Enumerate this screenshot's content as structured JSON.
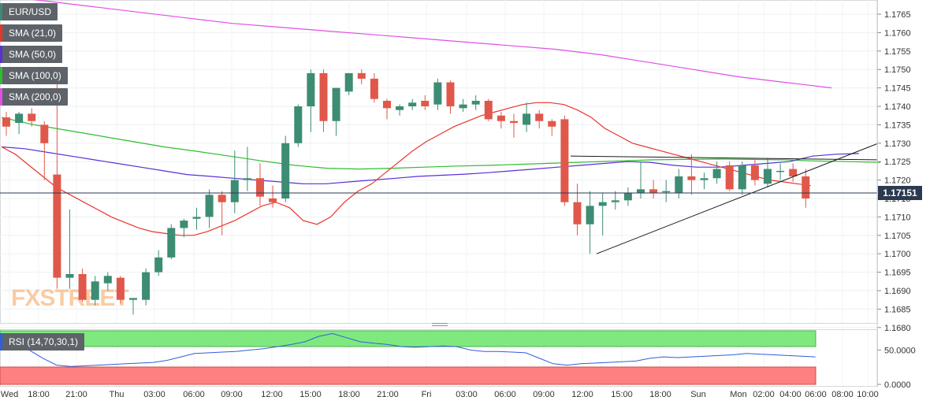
{
  "chart_data": {
    "type": "candlestick",
    "symbol": "EUR/USD",
    "last_price": "1.17151",
    "watermark": "FXSTREET",
    "colors": {
      "up": "#3d8c74",
      "down": "#e0584b",
      "sma21": "#e8352b",
      "sma50": "#5b2fd6",
      "sma100": "#2fbd2f",
      "sma200": "#e04fe6",
      "rsi": "#2f5fd9",
      "rsi_over": "#7fe97f",
      "rsi_under": "#ff8080",
      "last_line": "#2b3a4f",
      "trendline": "#1a1a1a"
    },
    "legend": [
      {
        "label": "EUR/USD",
        "color": "#3d8c74"
      },
      {
        "label": "SMA (21,0)",
        "color": "#e8352b"
      },
      {
        "label": "SMA (50,0)",
        "color": "#5b2fd6"
      },
      {
        "label": "SMA (100,0)",
        "color": "#2fbd2f"
      },
      {
        "label": "SMA (200,0)",
        "color": "#e04fe6"
      }
    ],
    "rsi_label": "RSI (14,70,30,1)",
    "y_ticks": [
      "1.1765",
      "1.1760",
      "1.1755",
      "1.1750",
      "1.1745",
      "1.1740",
      "1.1735",
      "1.1730",
      "1.1725",
      "1.1720",
      "1.1715",
      "1.1710",
      "1.1705",
      "1.1700",
      "1.1695",
      "1.1690",
      "1.1685",
      "1.1680"
    ],
    "ylim": [
      1.1678,
      1.1768
    ],
    "rsi_ticks": [
      "50.0000",
      "0.0000"
    ],
    "rsi_lim": [
      0,
      78
    ],
    "x_ticks": [
      "Wed",
      "18:00",
      "21:00",
      "Thu",
      "03:00",
      "06:00",
      "09:00",
      "12:00",
      "15:00",
      "18:00",
      "21:00",
      "Fri",
      "03:00",
      "06:00",
      "09:00",
      "12:00",
      "15:00",
      "18:00",
      "Sun",
      "Mon",
      "02:00",
      "04:00",
      "06:00",
      "08:00",
      "10:00"
    ],
    "candles": [
      {
        "o": 1.1737,
        "h": 1.17385,
        "l": 1.1732,
        "c": 1.17345
      },
      {
        "o": 1.17355,
        "h": 1.17385,
        "l": 1.17325,
        "c": 1.1738
      },
      {
        "o": 1.1738,
        "h": 1.17395,
        "l": 1.17345,
        "c": 1.1736
      },
      {
        "o": 1.1735,
        "h": 1.1736,
        "l": 1.172,
        "c": 1.173
      },
      {
        "o": 1.17215,
        "h": 1.1748,
        "l": 1.16905,
        "c": 1.16935
      },
      {
        "o": 1.16935,
        "h": 1.1712,
        "l": 1.16905,
        "c": 1.16945
      },
      {
        "o": 1.16945,
        "h": 1.1696,
        "l": 1.1687,
        "c": 1.16875
      },
      {
        "o": 1.16875,
        "h": 1.1694,
        "l": 1.1686,
        "c": 1.16925
      },
      {
        "o": 1.1692,
        "h": 1.1695,
        "l": 1.169,
        "c": 1.1694
      },
      {
        "o": 1.16935,
        "h": 1.1694,
        "l": 1.16865,
        "c": 1.16875
      },
      {
        "o": 1.16875,
        "h": 1.1688,
        "l": 1.16835,
        "c": 1.1688
      },
      {
        "o": 1.16875,
        "h": 1.1696,
        "l": 1.1686,
        "c": 1.1695
      },
      {
        "o": 1.1695,
        "h": 1.1701,
        "l": 1.1694,
        "c": 1.1699
      },
      {
        "o": 1.1699,
        "h": 1.1708,
        "l": 1.16985,
        "c": 1.1707
      },
      {
        "o": 1.1707,
        "h": 1.17095,
        "l": 1.17045,
        "c": 1.1709
      },
      {
        "o": 1.17095,
        "h": 1.17125,
        "l": 1.17065,
        "c": 1.171
      },
      {
        "o": 1.171,
        "h": 1.17175,
        "l": 1.1707,
        "c": 1.1716
      },
      {
        "o": 1.1716,
        "h": 1.1717,
        "l": 1.1705,
        "c": 1.1714
      },
      {
        "o": 1.1714,
        "h": 1.1728,
        "l": 1.1711,
        "c": 1.172
      },
      {
        "o": 1.172,
        "h": 1.1729,
        "l": 1.1717,
        "c": 1.17205
      },
      {
        "o": 1.17205,
        "h": 1.17245,
        "l": 1.1713,
        "c": 1.17155
      },
      {
        "o": 1.1715,
        "h": 1.17185,
        "l": 1.17125,
        "c": 1.1714
      },
      {
        "o": 1.1715,
        "h": 1.1732,
        "l": 1.1714,
        "c": 1.173
      },
      {
        "o": 1.173,
        "h": 1.17405,
        "l": 1.1729,
        "c": 1.174
      },
      {
        "o": 1.174,
        "h": 1.175,
        "l": 1.1733,
        "c": 1.1749
      },
      {
        "o": 1.1749,
        "h": 1.175,
        "l": 1.1733,
        "c": 1.1736
      },
      {
        "o": 1.1736,
        "h": 1.1745,
        "l": 1.1732,
        "c": 1.1745
      },
      {
        "o": 1.1744,
        "h": 1.1749,
        "l": 1.1743,
        "c": 1.1749
      },
      {
        "o": 1.1749,
        "h": 1.175,
        "l": 1.1746,
        "c": 1.17475
      },
      {
        "o": 1.17475,
        "h": 1.1749,
        "l": 1.1741,
        "c": 1.1742
      },
      {
        "o": 1.17415,
        "h": 1.1742,
        "l": 1.17365,
        "c": 1.17395
      },
      {
        "o": 1.1739,
        "h": 1.17405,
        "l": 1.17375,
        "c": 1.174
      },
      {
        "o": 1.174,
        "h": 1.1742,
        "l": 1.1739,
        "c": 1.1741
      },
      {
        "o": 1.17415,
        "h": 1.1743,
        "l": 1.1739,
        "c": 1.174
      },
      {
        "o": 1.17405,
        "h": 1.17475,
        "l": 1.1739,
        "c": 1.17465
      },
      {
        "o": 1.17465,
        "h": 1.1747,
        "l": 1.1738,
        "c": 1.174
      },
      {
        "o": 1.17395,
        "h": 1.1742,
        "l": 1.17385,
        "c": 1.17405
      },
      {
        "o": 1.17405,
        "h": 1.1743,
        "l": 1.1739,
        "c": 1.17415
      },
      {
        "o": 1.17415,
        "h": 1.1742,
        "l": 1.1736,
        "c": 1.17365
      },
      {
        "o": 1.17375,
        "h": 1.17385,
        "l": 1.1734,
        "c": 1.1736
      },
      {
        "o": 1.1736,
        "h": 1.1738,
        "l": 1.17315,
        "c": 1.17355
      },
      {
        "o": 1.1735,
        "h": 1.1741,
        "l": 1.1733,
        "c": 1.1738
      },
      {
        "o": 1.1738,
        "h": 1.1739,
        "l": 1.1734,
        "c": 1.1736
      },
      {
        "o": 1.1736,
        "h": 1.17365,
        "l": 1.1732,
        "c": 1.17345
      },
      {
        "o": 1.17365,
        "h": 1.17375,
        "l": 1.1713,
        "c": 1.1714
      },
      {
        "o": 1.1714,
        "h": 1.1719,
        "l": 1.1705,
        "c": 1.1708
      },
      {
        "o": 1.1708,
        "h": 1.1717,
        "l": 1.17,
        "c": 1.1713
      },
      {
        "o": 1.1713,
        "h": 1.17165,
        "l": 1.1705,
        "c": 1.1714
      },
      {
        "o": 1.1714,
        "h": 1.1717,
        "l": 1.1712,
        "c": 1.17145
      },
      {
        "o": 1.17145,
        "h": 1.1718,
        "l": 1.1713,
        "c": 1.17165
      },
      {
        "o": 1.17165,
        "h": 1.1725,
        "l": 1.1715,
        "c": 1.17175
      },
      {
        "o": 1.17175,
        "h": 1.172,
        "l": 1.1715,
        "c": 1.17165
      },
      {
        "o": 1.1717,
        "h": 1.172,
        "l": 1.1714,
        "c": 1.1717
      },
      {
        "o": 1.17165,
        "h": 1.1723,
        "l": 1.1715,
        "c": 1.1721
      },
      {
        "o": 1.1721,
        "h": 1.1727,
        "l": 1.1716,
        "c": 1.172
      },
      {
        "o": 1.172,
        "h": 1.1722,
        "l": 1.17175,
        "c": 1.17205
      },
      {
        "o": 1.17205,
        "h": 1.1725,
        "l": 1.1719,
        "c": 1.1723
      },
      {
        "o": 1.1724,
        "h": 1.1725,
        "l": 1.1717,
        "c": 1.17175
      },
      {
        "o": 1.17175,
        "h": 1.1725,
        "l": 1.1716,
        "c": 1.1724
      },
      {
        "o": 1.1724,
        "h": 1.17255,
        "l": 1.17185,
        "c": 1.172
      },
      {
        "o": 1.1719,
        "h": 1.1726,
        "l": 1.1718,
        "c": 1.1723
      },
      {
        "o": 1.17225,
        "h": 1.17245,
        "l": 1.172,
        "c": 1.17225
      },
      {
        "o": 1.1723,
        "h": 1.17245,
        "l": 1.17195,
        "c": 1.1721
      },
      {
        "o": 1.1721,
        "h": 1.1723,
        "l": 1.17125,
        "c": 1.1715
      }
    ],
    "sma21": [
      1.1729,
      1.1727,
      1.1724,
      1.1721,
      1.1718,
      1.1716,
      1.1714,
      1.1712,
      1.171,
      1.17085,
      1.1707,
      1.1706,
      1.17055,
      1.1705,
      1.1705,
      1.1706,
      1.17075,
      1.1709,
      1.1711,
      1.1713,
      1.1714,
      1.17125,
      1.1709,
      1.1708,
      1.171,
      1.1714,
      1.1717,
      1.1719,
      1.1722,
      1.1725,
      1.1728,
      1.17305,
      1.17325,
      1.17345,
      1.1736,
      1.17375,
      1.17385,
      1.17395,
      1.17405,
      1.1741,
      1.1741,
      1.17405,
      1.1739,
      1.1737,
      1.1734,
      1.1732,
      1.173,
      1.1729,
      1.1728,
      1.1727,
      1.1726,
      1.1725,
      1.1724,
      1.1723,
      1.1722,
      1.1721,
      1.172,
      1.17195,
      1.1719,
      1.17185
    ],
    "sma50": [
      1.1729,
      1.17285,
      1.17275,
      1.17265,
      1.17255,
      1.17245,
      1.17235,
      1.17225,
      1.17215,
      1.1721,
      1.17205,
      1.172,
      1.17195,
      1.1719,
      1.1719,
      1.17195,
      1.172,
      1.17205,
      1.1721,
      1.17213,
      1.17216,
      1.1722,
      1.17225,
      1.1723,
      1.17235,
      1.1724,
      1.17245,
      1.1725,
      1.17248,
      1.1724,
      1.17235,
      1.17235,
      1.1724,
      1.17245,
      1.1725,
      1.17265,
      1.1727,
      1.17272
    ],
    "sma100": [
      1.1737,
      1.1735,
      1.17335,
      1.1732,
      1.17305,
      1.1729,
      1.17278,
      1.17265,
      1.17252,
      1.1724,
      1.17232,
      1.1723,
      1.17232,
      1.17235,
      1.17238,
      1.1724,
      1.17243,
      1.17246,
      1.17249,
      1.17252,
      1.17255,
      1.17256,
      1.17257,
      1.17256,
      1.17255,
      1.17252,
      1.1725,
      1.17248
    ],
    "sma200": [
      1.177,
      1.17685,
      1.1767,
      1.17655,
      1.1764,
      1.17625,
      1.17615,
      1.17605,
      1.17595,
      1.17585,
      1.17575,
      1.17565,
      1.17555,
      1.1754,
      1.1752,
      1.175,
      1.1748,
      1.17465,
      1.1745
    ],
    "rsi": [
      60,
      55,
      50,
      38,
      28,
      26,
      27,
      28,
      29,
      30,
      31,
      32,
      35,
      40,
      45,
      46,
      47,
      48,
      50,
      52,
      55,
      58,
      62,
      70,
      74,
      68,
      62,
      60,
      58,
      55,
      54,
      55,
      56,
      55,
      50,
      48,
      48,
      47,
      46,
      38,
      30,
      28,
      30,
      31,
      32,
      33,
      34,
      38,
      40,
      39,
      40,
      41,
      42,
      43,
      45,
      44,
      43,
      42,
      41,
      40
    ],
    "trendlines": [
      {
        "from": [
          1.17265
        ],
        "to": [
          1.17255
        ]
      },
      {
        "from": [
          1.17
        ],
        "to": [
          1.1729
        ]
      }
    ]
  }
}
